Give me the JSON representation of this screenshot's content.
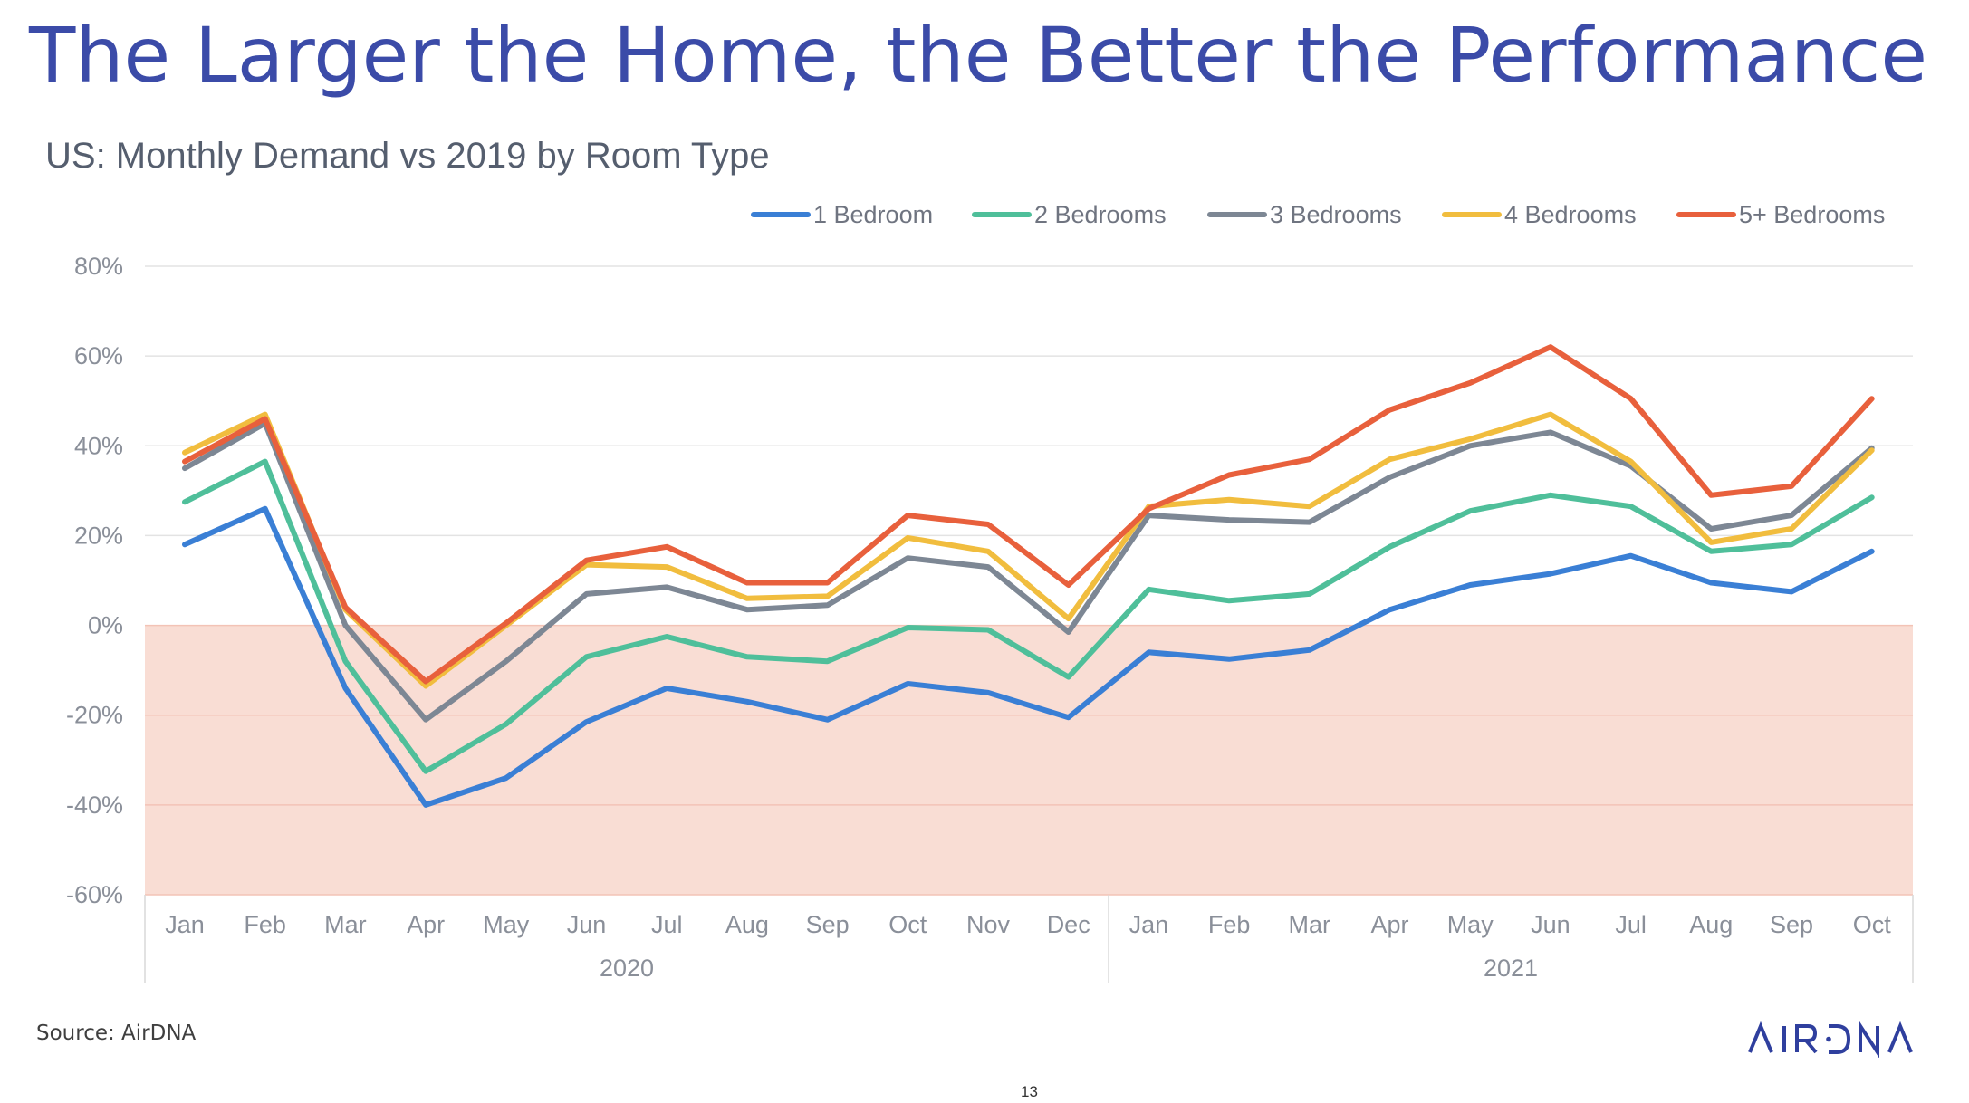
{
  "slide": {
    "title": "The Larger the Home, the Better the Performance",
    "source": "Source: AirDNA",
    "page_number": "13",
    "logo_text": "AIRDNA"
  },
  "colors": {
    "title": "#3b4ba8",
    "negative_band": "#f9ddd4",
    "logo": "#2f3f9e"
  },
  "chart_data": {
    "type": "line",
    "title": "US: Monthly Demand vs 2019 by Room Type",
    "xlabel": "",
    "ylabel": "",
    "ylim": [
      -60,
      80
    ],
    "yticks": [
      80,
      60,
      40,
      20,
      0,
      -20,
      -40,
      -60
    ],
    "ytick_labels": [
      "80%",
      "60%",
      "40%",
      "20%",
      "0%",
      "-20%",
      "-40%",
      "-60%"
    ],
    "categories": [
      "Jan",
      "Feb",
      "Mar",
      "Apr",
      "May",
      "Jun",
      "Jul",
      "Aug",
      "Sep",
      "Oct",
      "Nov",
      "Dec",
      "Jan",
      "Feb",
      "Mar",
      "Apr",
      "May",
      "Jun",
      "Jul",
      "Aug",
      "Sep",
      "Oct"
    ],
    "groups": [
      {
        "label": "2020",
        "start": 0,
        "end": 11
      },
      {
        "label": "2021",
        "start": 12,
        "end": 21
      }
    ],
    "legend_position": "top-right",
    "grid": true,
    "shaded_region": {
      "from": -60,
      "to": 0,
      "color": "#f9ddd4"
    },
    "series": [
      {
        "name": "1 Bedroom",
        "color": "#3a7fd5",
        "values": [
          18,
          26,
          -14,
          -40,
          -34,
          -21.5,
          -14,
          -17,
          -21,
          -13,
          -15,
          -20.5,
          -6,
          -7.5,
          -5.5,
          3.5,
          9,
          11.5,
          15.5,
          9.5,
          7.5,
          16.5
        ]
      },
      {
        "name": "2 Bedrooms",
        "color": "#4fbf9a",
        "values": [
          27.5,
          36.5,
          -8,
          -32.5,
          -22,
          -7,
          -2.5,
          -7,
          -8,
          -0.5,
          -1,
          -11.5,
          8,
          5.5,
          7,
          17.5,
          25.5,
          29,
          26.5,
          16.5,
          18,
          28.5
        ]
      },
      {
        "name": "3 Bedrooms",
        "color": "#7d8794",
        "values": [
          35,
          45,
          0,
          -21,
          -8,
          7,
          8.5,
          3.5,
          4.5,
          15,
          13,
          -1.5,
          24.5,
          23.5,
          23,
          33,
          40,
          43,
          35.5,
          21.5,
          24.5,
          39.5
        ]
      },
      {
        "name": "4 Bedrooms",
        "color": "#f1bd3e",
        "values": [
          38.5,
          47,
          3.5,
          -13.5,
          0,
          13.5,
          13,
          6,
          6.5,
          19.5,
          16.5,
          1.5,
          26.5,
          28,
          26.5,
          37,
          41.5,
          47,
          36.5,
          18.5,
          21.5,
          39
        ]
      },
      {
        "name": "5+ Bedrooms",
        "color": "#e8603c",
        "values": [
          36.5,
          46,
          4,
          -12.5,
          0.5,
          14.5,
          17.5,
          9.5,
          9.5,
          24.5,
          22.5,
          9,
          26,
          33.5,
          37,
          48,
          54,
          62,
          50.5,
          29,
          31,
          50.5
        ]
      }
    ]
  }
}
